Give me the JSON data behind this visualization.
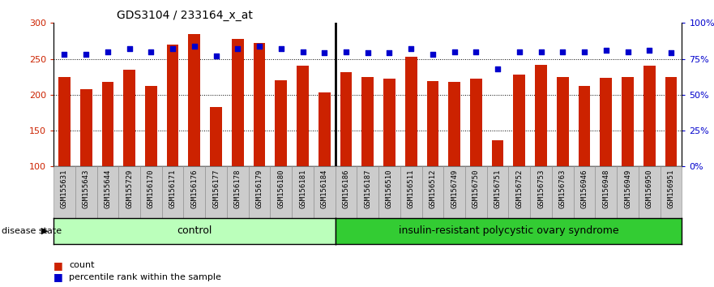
{
  "title": "GDS3104 / 233164_x_at",
  "samples": [
    "GSM155631",
    "GSM155643",
    "GSM155644",
    "GSM155729",
    "GSM156170",
    "GSM156171",
    "GSM156176",
    "GSM156177",
    "GSM156178",
    "GSM156179",
    "GSM156180",
    "GSM156181",
    "GSM156184",
    "GSM156186",
    "GSM156187",
    "GSM156510",
    "GSM156511",
    "GSM156512",
    "GSM156749",
    "GSM156750",
    "GSM156751",
    "GSM156752",
    "GSM156753",
    "GSM156763",
    "GSM156946",
    "GSM156948",
    "GSM156949",
    "GSM156950",
    "GSM156951"
  ],
  "counts": [
    225,
    208,
    218,
    235,
    212,
    270,
    285,
    183,
    278,
    272,
    220,
    240,
    203,
    232,
    225,
    222,
    253,
    219,
    218,
    222,
    136,
    228,
    242,
    225,
    212,
    224,
    225,
    240,
    225
  ],
  "percentile_ranks": [
    78,
    78,
    80,
    82,
    80,
    82,
    84,
    77,
    82,
    84,
    82,
    80,
    79,
    80,
    79,
    79,
    82,
    78,
    80,
    80,
    68,
    80,
    80,
    80,
    80,
    81,
    80,
    81,
    79
  ],
  "control_count": 13,
  "group_labels": [
    "control",
    "insulin-resistant polycystic ovary syndrome"
  ],
  "bar_color": "#cc2200",
  "dot_color": "#0000cc",
  "ylim_left": [
    100,
    300
  ],
  "ylim_right": [
    0,
    100
  ],
  "yticks_left": [
    100,
    150,
    200,
    250,
    300
  ],
  "yticks_right": [
    0,
    25,
    50,
    75,
    100
  ],
  "control_bg": "#bbffbb",
  "pcos_bg": "#33cc33",
  "ticklabel_bg": "#cccccc",
  "title_fontsize": 10,
  "tick_fontsize": 6.5,
  "bar_width": 0.55
}
